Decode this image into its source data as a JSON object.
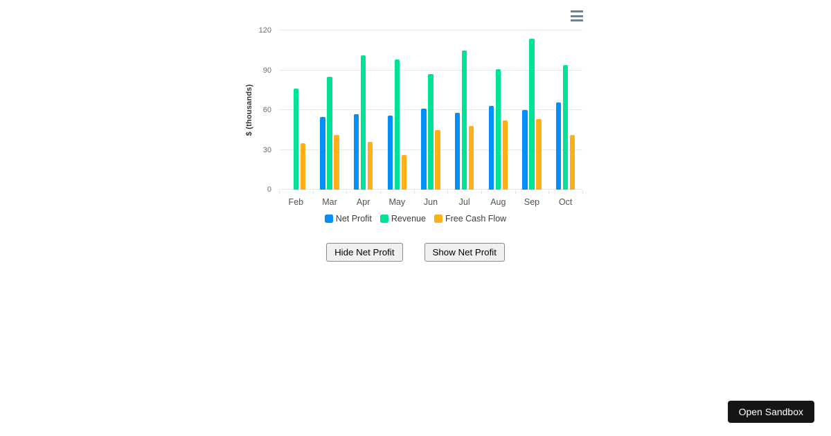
{
  "chart_data": {
    "type": "bar",
    "title": "",
    "xlabel": "",
    "ylabel": "$ (thousands)",
    "categories": [
      "Feb",
      "Mar",
      "Apr",
      "May",
      "Jun",
      "Jul",
      "Aug",
      "Sep",
      "Oct"
    ],
    "series": [
      {
        "name": "Net Profit",
        "color": "#008FFB",
        "values": [
          null,
          55,
          57,
          56,
          61,
          58,
          63,
          60,
          66
        ]
      },
      {
        "name": "Revenue",
        "color": "#00E396",
        "values": [
          76,
          85,
          101,
          98,
          87,
          105,
          91,
          114,
          94
        ]
      },
      {
        "name": "Free Cash Flow",
        "color": "#FEB019",
        "values": [
          35,
          41,
          36,
          26,
          45,
          48,
          52,
          53,
          41
        ]
      }
    ],
    "ylim": [
      0,
      120
    ],
    "yticks": [
      0,
      30,
      60,
      90,
      120
    ],
    "grid": true,
    "legend_position": "bottom"
  },
  "icons": {
    "chart_menu": "hamburger-menu-icon",
    "menu_color": "#6E8192"
  },
  "controls": {
    "hide_label": "Hide Net Profit",
    "show_label": "Show Net Profit"
  },
  "sandbox": {
    "label": "Open Sandbox",
    "background": "#151515",
    "text_color": "#ffffff"
  }
}
